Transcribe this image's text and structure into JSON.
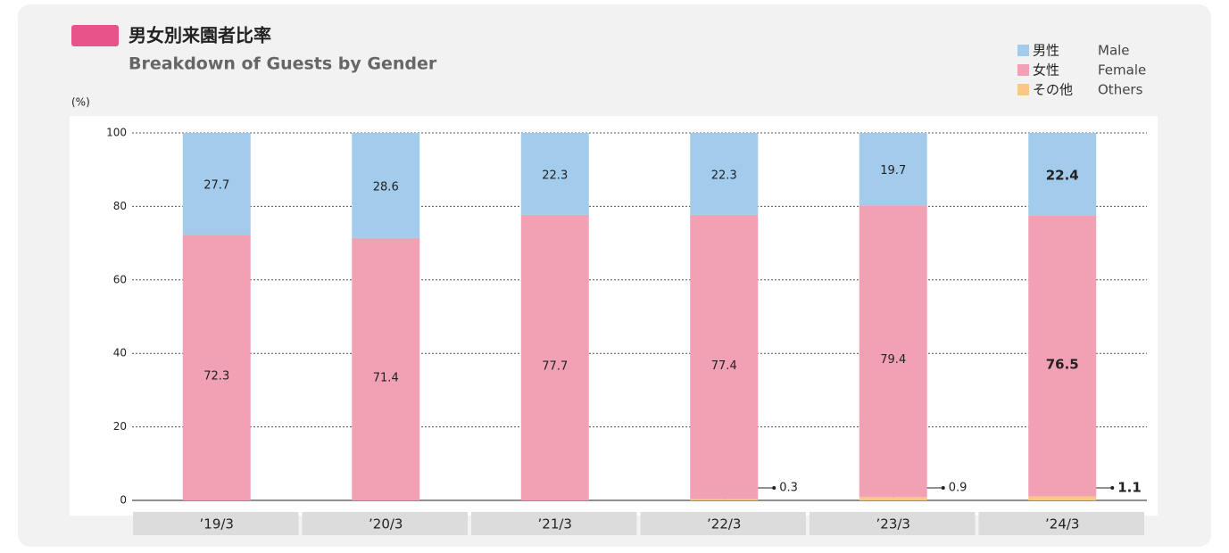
{
  "chart_data": {
    "type": "stacked_bar",
    "title": "男女別来園者比率",
    "subtitle": "Breakdown of Guests by Gender",
    "y_label": "(%)",
    "categories": [
      "’19/3",
      "’20/3",
      "’21/3",
      "’22/3",
      "’23/3",
      "’24/3"
    ],
    "series": [
      {
        "name": "その他",
        "name_en": "Others",
        "color": "#f9c888",
        "values": [
          null,
          null,
          null,
          0.3,
          0.9,
          1.1
        ]
      },
      {
        "name": "女性",
        "name_en": "Female",
        "color": "#f2a0b4",
        "values": [
          72.3,
          71.4,
          77.7,
          77.4,
          79.4,
          76.5
        ]
      },
      {
        "name": "男性",
        "name_en": "Male",
        "color": "#a3cbeb",
        "values": [
          27.7,
          28.6,
          22.3,
          22.3,
          19.7,
          22.4
        ]
      }
    ],
    "ylim": [
      0,
      100
    ],
    "yticks": [
      0,
      20,
      40,
      60,
      80,
      100
    ],
    "grid": true,
    "highlight_index": 5
  }
}
